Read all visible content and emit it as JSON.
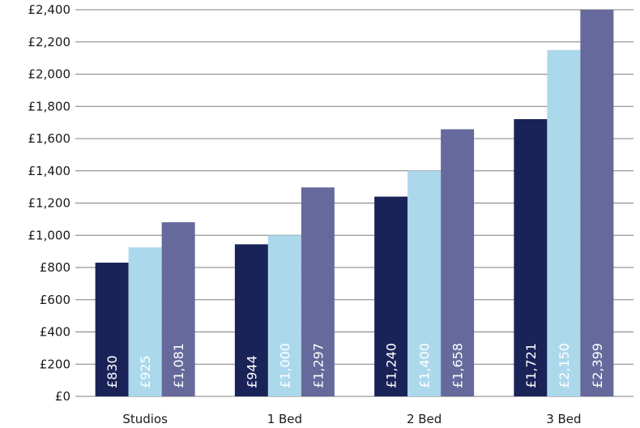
{
  "chart_data": {
    "type": "bar",
    "title": "",
    "xlabel": "",
    "ylabel": "",
    "categories": [
      "Studios",
      "1 Bed",
      "2 Bed",
      "3 Bed"
    ],
    "ylim": [
      0,
      2400
    ],
    "yticks": [
      0,
      200,
      400,
      600,
      800,
      1000,
      1200,
      1400,
      1600,
      1800,
      2000,
      2200,
      2400
    ],
    "ytick_labels": [
      "£0",
      "£200",
      "£400",
      "£600",
      "£800",
      "£1,000",
      "£1,200",
      "£1,400",
      "£1,600",
      "£1,800",
      "£2,000",
      "£2,200",
      "£2,400"
    ],
    "grid": true,
    "legend": "none",
    "series": [
      {
        "color": "#1a2358",
        "values": [
          830,
          944,
          1240,
          1721
        ],
        "labels": [
          "£830",
          "£944",
          "£1,240",
          "£1,721"
        ]
      },
      {
        "color": "#acd8ec",
        "values": [
          925,
          1000,
          1400,
          2150
        ],
        "labels": [
          "£925",
          "£1,000",
          "£1,400",
          "£2,150"
        ]
      },
      {
        "color": "#65699b",
        "values": [
          1081,
          1297,
          1658,
          2399
        ],
        "labels": [
          "£1,081",
          "£1,297",
          "£1,658",
          "£2,399"
        ]
      }
    ]
  }
}
